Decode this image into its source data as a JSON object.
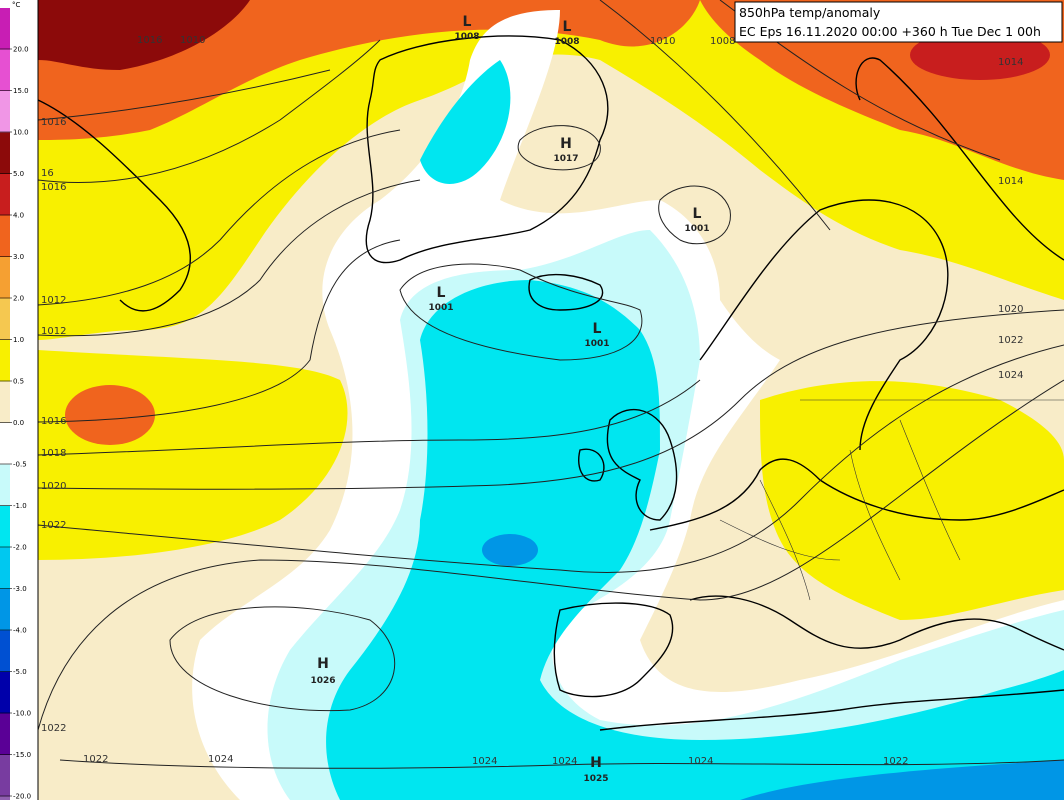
{
  "header": {
    "title": "850hPa temp/anomaly",
    "subtitle": "EC Eps 16.11.2020 00:00 +360 h Tue Dec 1 00h"
  },
  "legend": {
    "unit": "°C",
    "labels": [
      "20.0",
      "15.0",
      "10.0",
      "5.0",
      "4.0",
      "3.0",
      "2.0",
      "1.0",
      "0.5",
      "0.0",
      "-0.5",
      "-1.0",
      "-2.0",
      "-3.0",
      "-4.0",
      "-5.0",
      "-10.0",
      "-15.0",
      "-20.0"
    ],
    "colors": [
      "#c81eb4",
      "#e650d2",
      "#f096e6",
      "#8c0a0a",
      "#c81e1e",
      "#f0641e",
      "#f5a032",
      "#f5c850",
      "#f8f000",
      "#f8ecc8",
      "#ffffff",
      "#c8fafa",
      "#00e6f0",
      "#00c8f0",
      "#0096e6",
      "#0050d2",
      "#0000aa",
      "#5a0096",
      "#783ca0",
      "#9060b0"
    ]
  },
  "centers": [
    {
      "kind": "L",
      "value": "1008"
    },
    {
      "kind": "L",
      "value": "1008"
    },
    {
      "kind": "H",
      "value": "1017"
    },
    {
      "kind": "L",
      "value": "1001"
    },
    {
      "kind": "L",
      "value": "1001"
    },
    {
      "kind": "L",
      "value": "1001"
    },
    {
      "kind": "H",
      "value": "1026"
    },
    {
      "kind": "H",
      "value": "1025"
    }
  ],
  "isobar_labels": [
    "1016",
    "1010",
    "1010",
    "1008",
    "1014",
    "1016",
    "16",
    "1016",
    "1014",
    "1012",
    "1012",
    "1020",
    "1022",
    "1024",
    "1016",
    "1018",
    "1020",
    "1022",
    "1022",
    "1022",
    "1024",
    "1024",
    "1024",
    "1024",
    "1022"
  ]
}
